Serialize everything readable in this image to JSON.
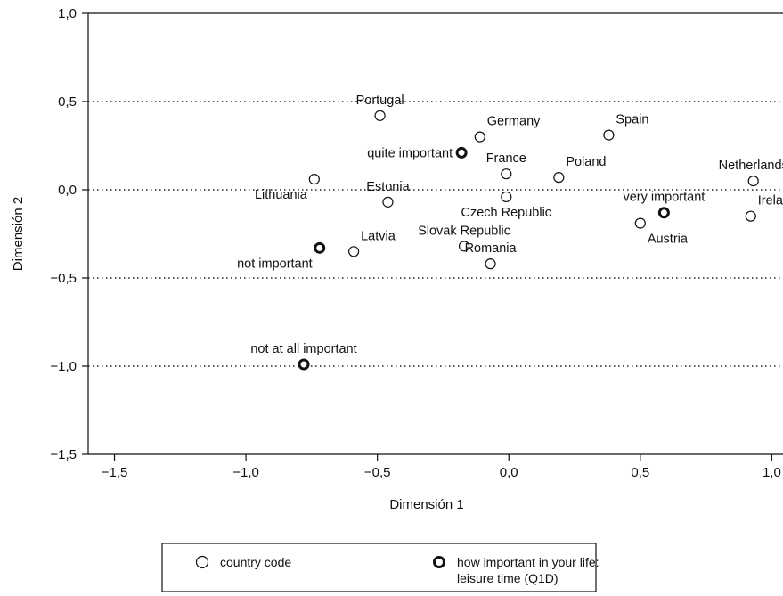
{
  "chart_data": {
    "type": "scatter",
    "xlabel": "Dimensión 1",
    "ylabel": "Dimensión 2",
    "xlim": [
      -1.6,
      1.08
    ],
    "ylim": [
      -1.5,
      1.0
    ],
    "xticks": [
      {
        "value": -1.5,
        "label": "−1,5"
      },
      {
        "value": -1.0,
        "label": "−1,0"
      },
      {
        "value": -0.5,
        "label": "−0,5"
      },
      {
        "value": 0.0,
        "label": "0,0"
      },
      {
        "value": 0.5,
        "label": "0,5"
      },
      {
        "value": 1.0,
        "label": "1,0"
      }
    ],
    "yticks": [
      {
        "value": 1.0,
        "label": "1,0"
      },
      {
        "value": 0.5,
        "label": "0,5"
      },
      {
        "value": 0.0,
        "label": "0,0"
      },
      {
        "value": -0.5,
        "label": "−0,5"
      },
      {
        "value": -1.0,
        "label": "−1,0"
      },
      {
        "value": -1.5,
        "label": "−1,5"
      }
    ],
    "gridlines_y": [
      0.5,
      0.0,
      -0.5,
      -1.0
    ],
    "series": [
      {
        "name": "country code",
        "marker": "thin-circle",
        "points": [
          {
            "label": "Portugal",
            "x": -0.49,
            "y": 0.42,
            "label_pos": "above"
          },
          {
            "label": "Germany",
            "x": -0.11,
            "y": 0.3,
            "label_pos": "above-right"
          },
          {
            "label": "Spain",
            "x": 0.38,
            "y": 0.31,
            "label_pos": "above-right"
          },
          {
            "label": "France",
            "x": -0.01,
            "y": 0.09,
            "label_pos": "above"
          },
          {
            "label": "Poland",
            "x": 0.19,
            "y": 0.07,
            "label_pos": "above-right"
          },
          {
            "label": "Netherlands",
            "x": 0.93,
            "y": 0.05,
            "label_pos": "above"
          },
          {
            "label": "Lithuania",
            "x": -0.74,
            "y": 0.06,
            "label_pos": "below-left"
          },
          {
            "label": "Estonia",
            "x": -0.46,
            "y": -0.07,
            "label_pos": "above"
          },
          {
            "label": "Czech Republic",
            "x": -0.01,
            "y": -0.04,
            "label_pos": "below"
          },
          {
            "label": "Ireland",
            "x": 0.92,
            "y": -0.15,
            "label_pos": "above-right"
          },
          {
            "label": "Austria",
            "x": 0.5,
            "y": -0.19,
            "label_pos": "below-right"
          },
          {
            "label": "Latvia",
            "x": -0.59,
            "y": -0.35,
            "label_pos": "above-right"
          },
          {
            "label": "Slovak Republic",
            "x": -0.17,
            "y": -0.32,
            "label_pos": "above"
          },
          {
            "label": "Romania",
            "x": -0.07,
            "y": -0.42,
            "label_pos": "above"
          }
        ]
      },
      {
        "name": "how important in your life: leisure time (Q1D)",
        "marker": "bold-circle",
        "points": [
          {
            "label": "quite important",
            "x": -0.18,
            "y": 0.21,
            "label_pos": "left"
          },
          {
            "label": "very important",
            "x": 0.59,
            "y": -0.13,
            "label_pos": "above"
          },
          {
            "label": "not important",
            "x": -0.72,
            "y": -0.33,
            "label_pos": "below-left"
          },
          {
            "label": "not at all important",
            "x": -0.78,
            "y": -0.99,
            "label_pos": "above"
          }
        ]
      }
    ],
    "legend": {
      "placement": "bottom",
      "items": [
        {
          "marker": "thin-circle",
          "lines": [
            "country code"
          ]
        },
        {
          "marker": "bold-circle",
          "lines": [
            "how important in your life:",
            "leisure time (Q1D)"
          ]
        }
      ]
    }
  }
}
